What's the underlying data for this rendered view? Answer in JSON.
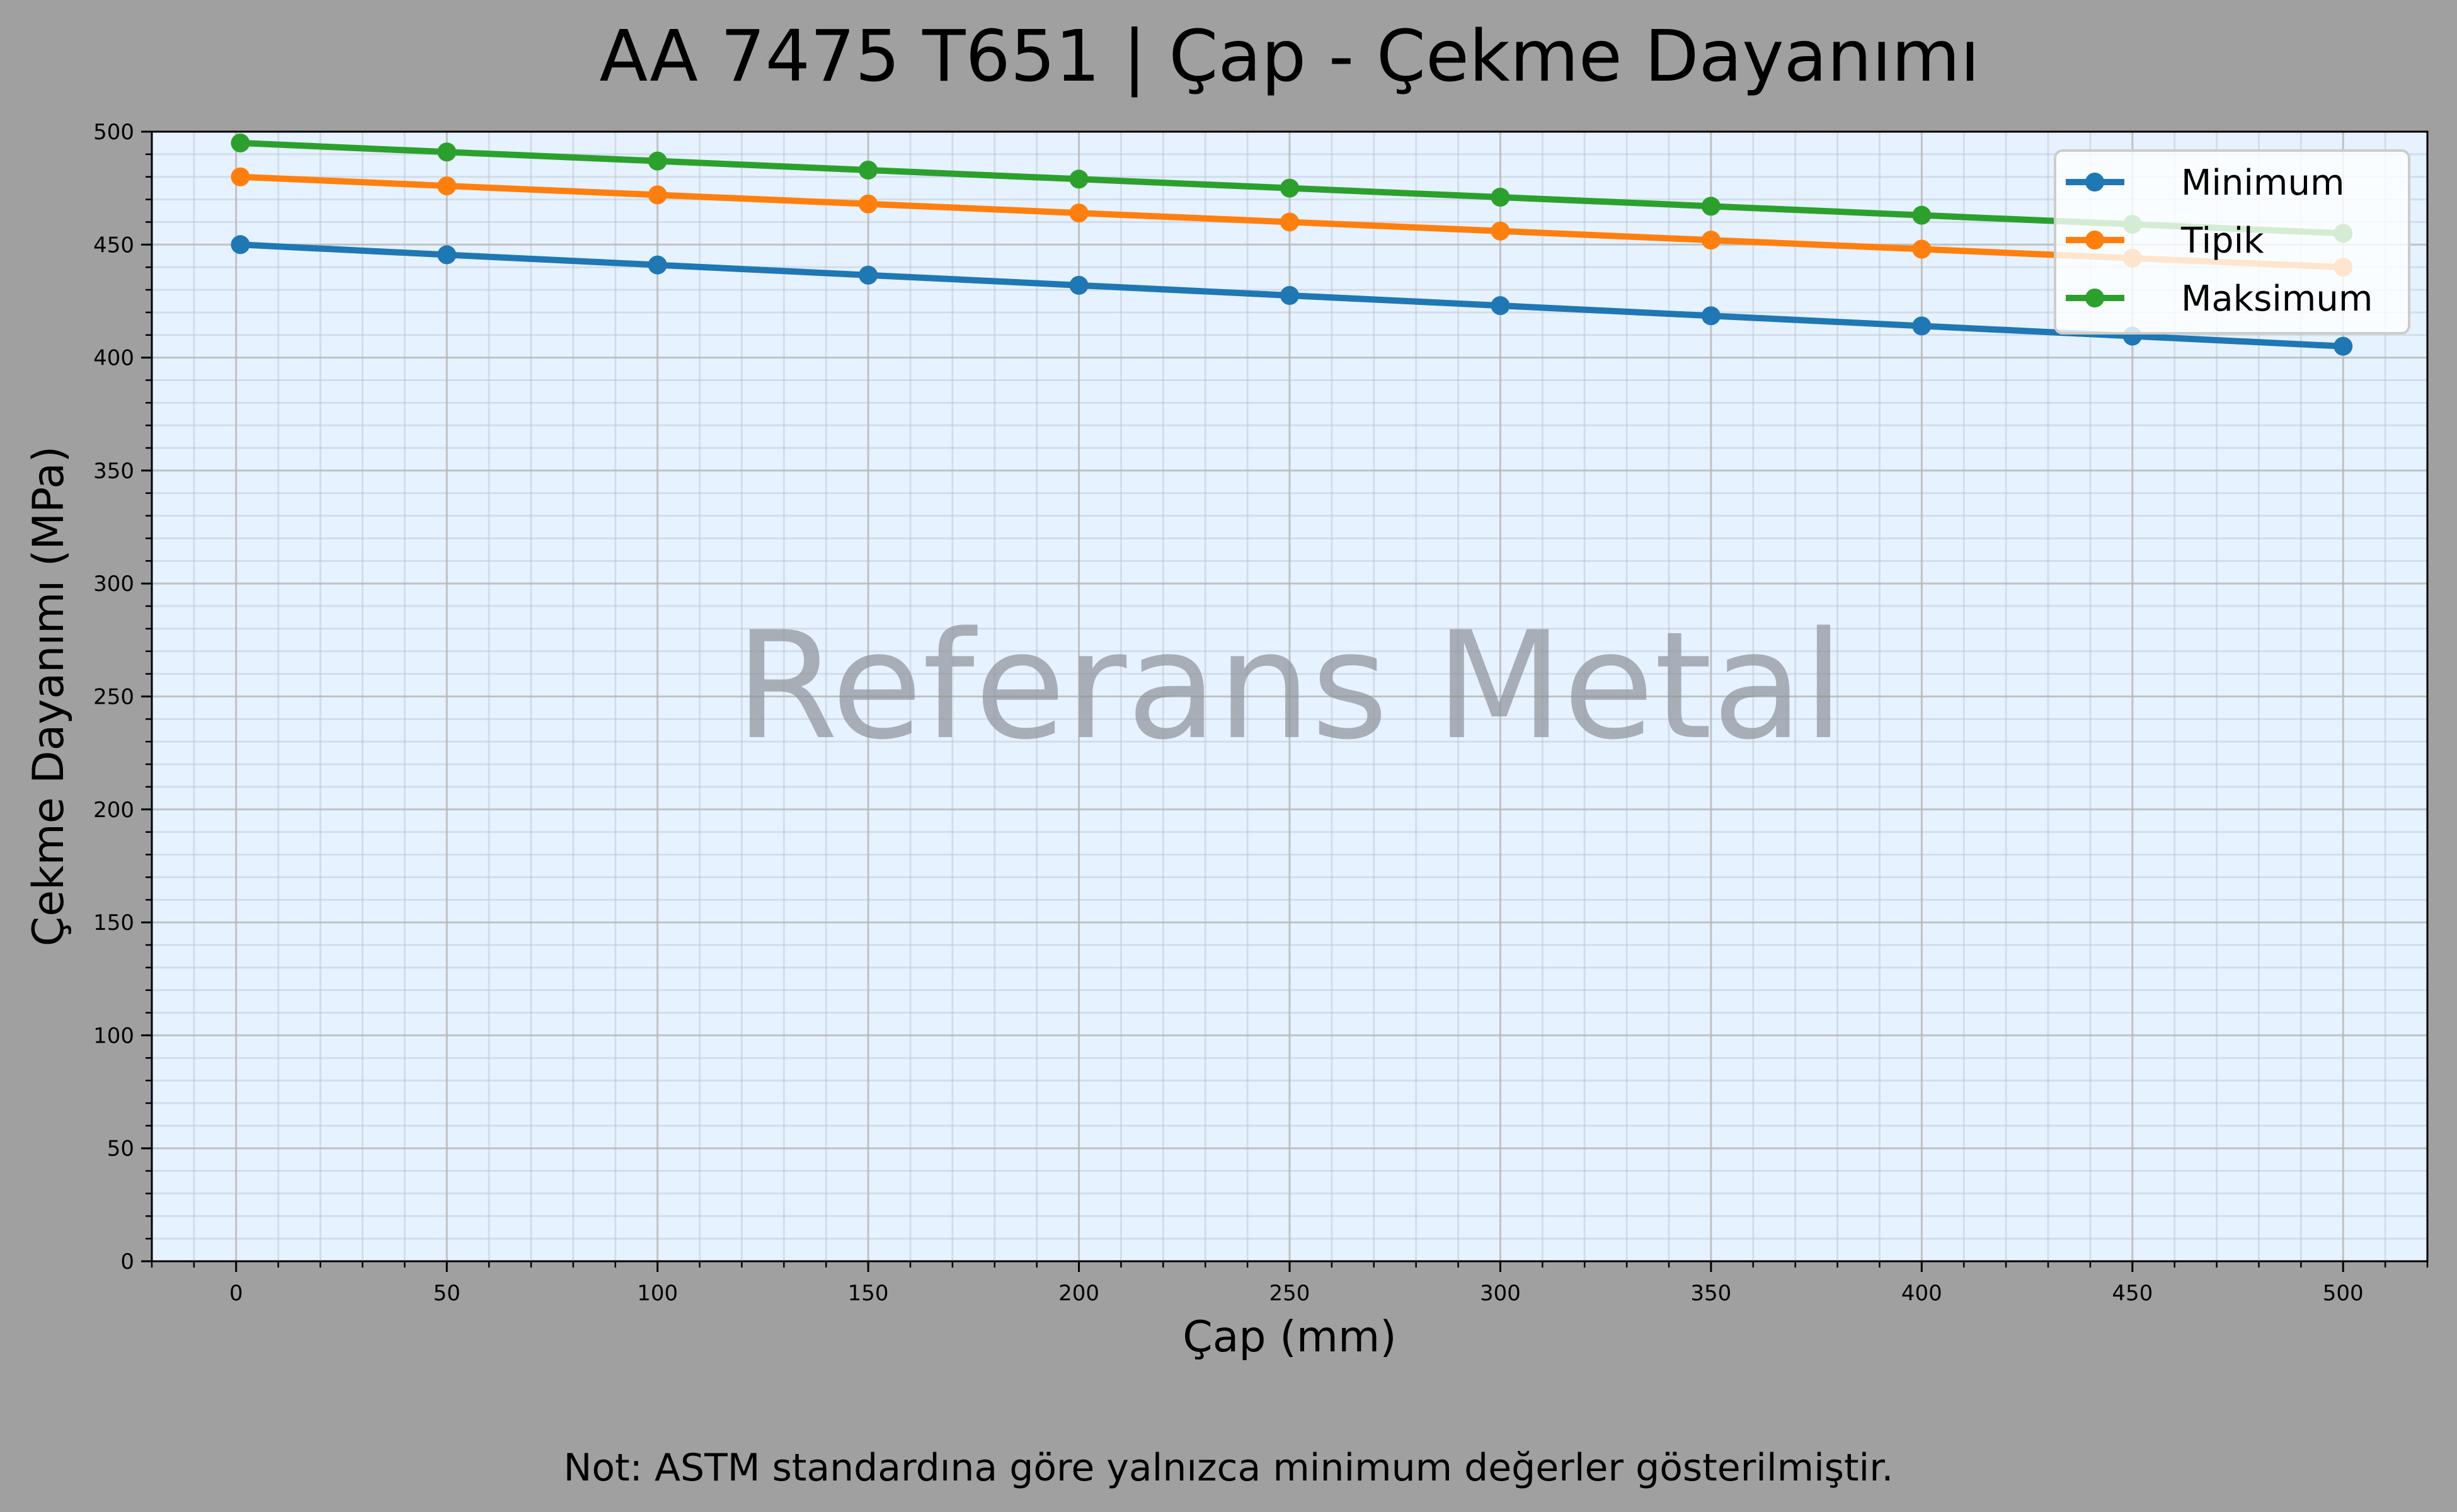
{
  "chart_data": {
    "type": "line",
    "title": "AA 7475 T651 | Çap - Çekme Dayanımı",
    "xlabel": "Çap (mm)",
    "ylabel": "Çekme Dayanımı (MPa)",
    "xlim": [
      -20,
      520
    ],
    "ylim": [
      0,
      500
    ],
    "xticks": [
      0,
      50,
      100,
      150,
      200,
      250,
      300,
      350,
      400,
      450,
      500
    ],
    "yticks": [
      0,
      50,
      100,
      150,
      200,
      250,
      300,
      350,
      400,
      450,
      500
    ],
    "grid": true,
    "minor_grid": true,
    "legend_position": "top-right",
    "x": [
      1,
      50,
      100,
      150,
      200,
      250,
      300,
      350,
      400,
      450,
      500
    ],
    "series": [
      {
        "name": "Minimum",
        "color": "#1f77b4",
        "values": [
          450,
          445.5,
          441,
          436.5,
          432,
          427.5,
          423,
          418.5,
          414,
          409.5,
          405
        ]
      },
      {
        "name": "Tipik",
        "color": "#ff7f0e",
        "values": [
          480,
          476,
          472,
          468,
          464,
          460,
          456,
          452,
          448,
          444,
          440
        ]
      },
      {
        "name": "Maksimum",
        "color": "#2ca02c",
        "values": [
          495,
          491,
          487,
          483,
          479,
          475,
          471,
          467,
          463,
          459,
          455
        ]
      }
    ],
    "watermark": "Referans Metal",
    "note": "Not: ASTM standardına göre yalnızca minimum değerler gösterilmiştir."
  },
  "colors": {
    "figure_bg": "#a0a0a0",
    "plot_bg": "#e6f2ff"
  }
}
